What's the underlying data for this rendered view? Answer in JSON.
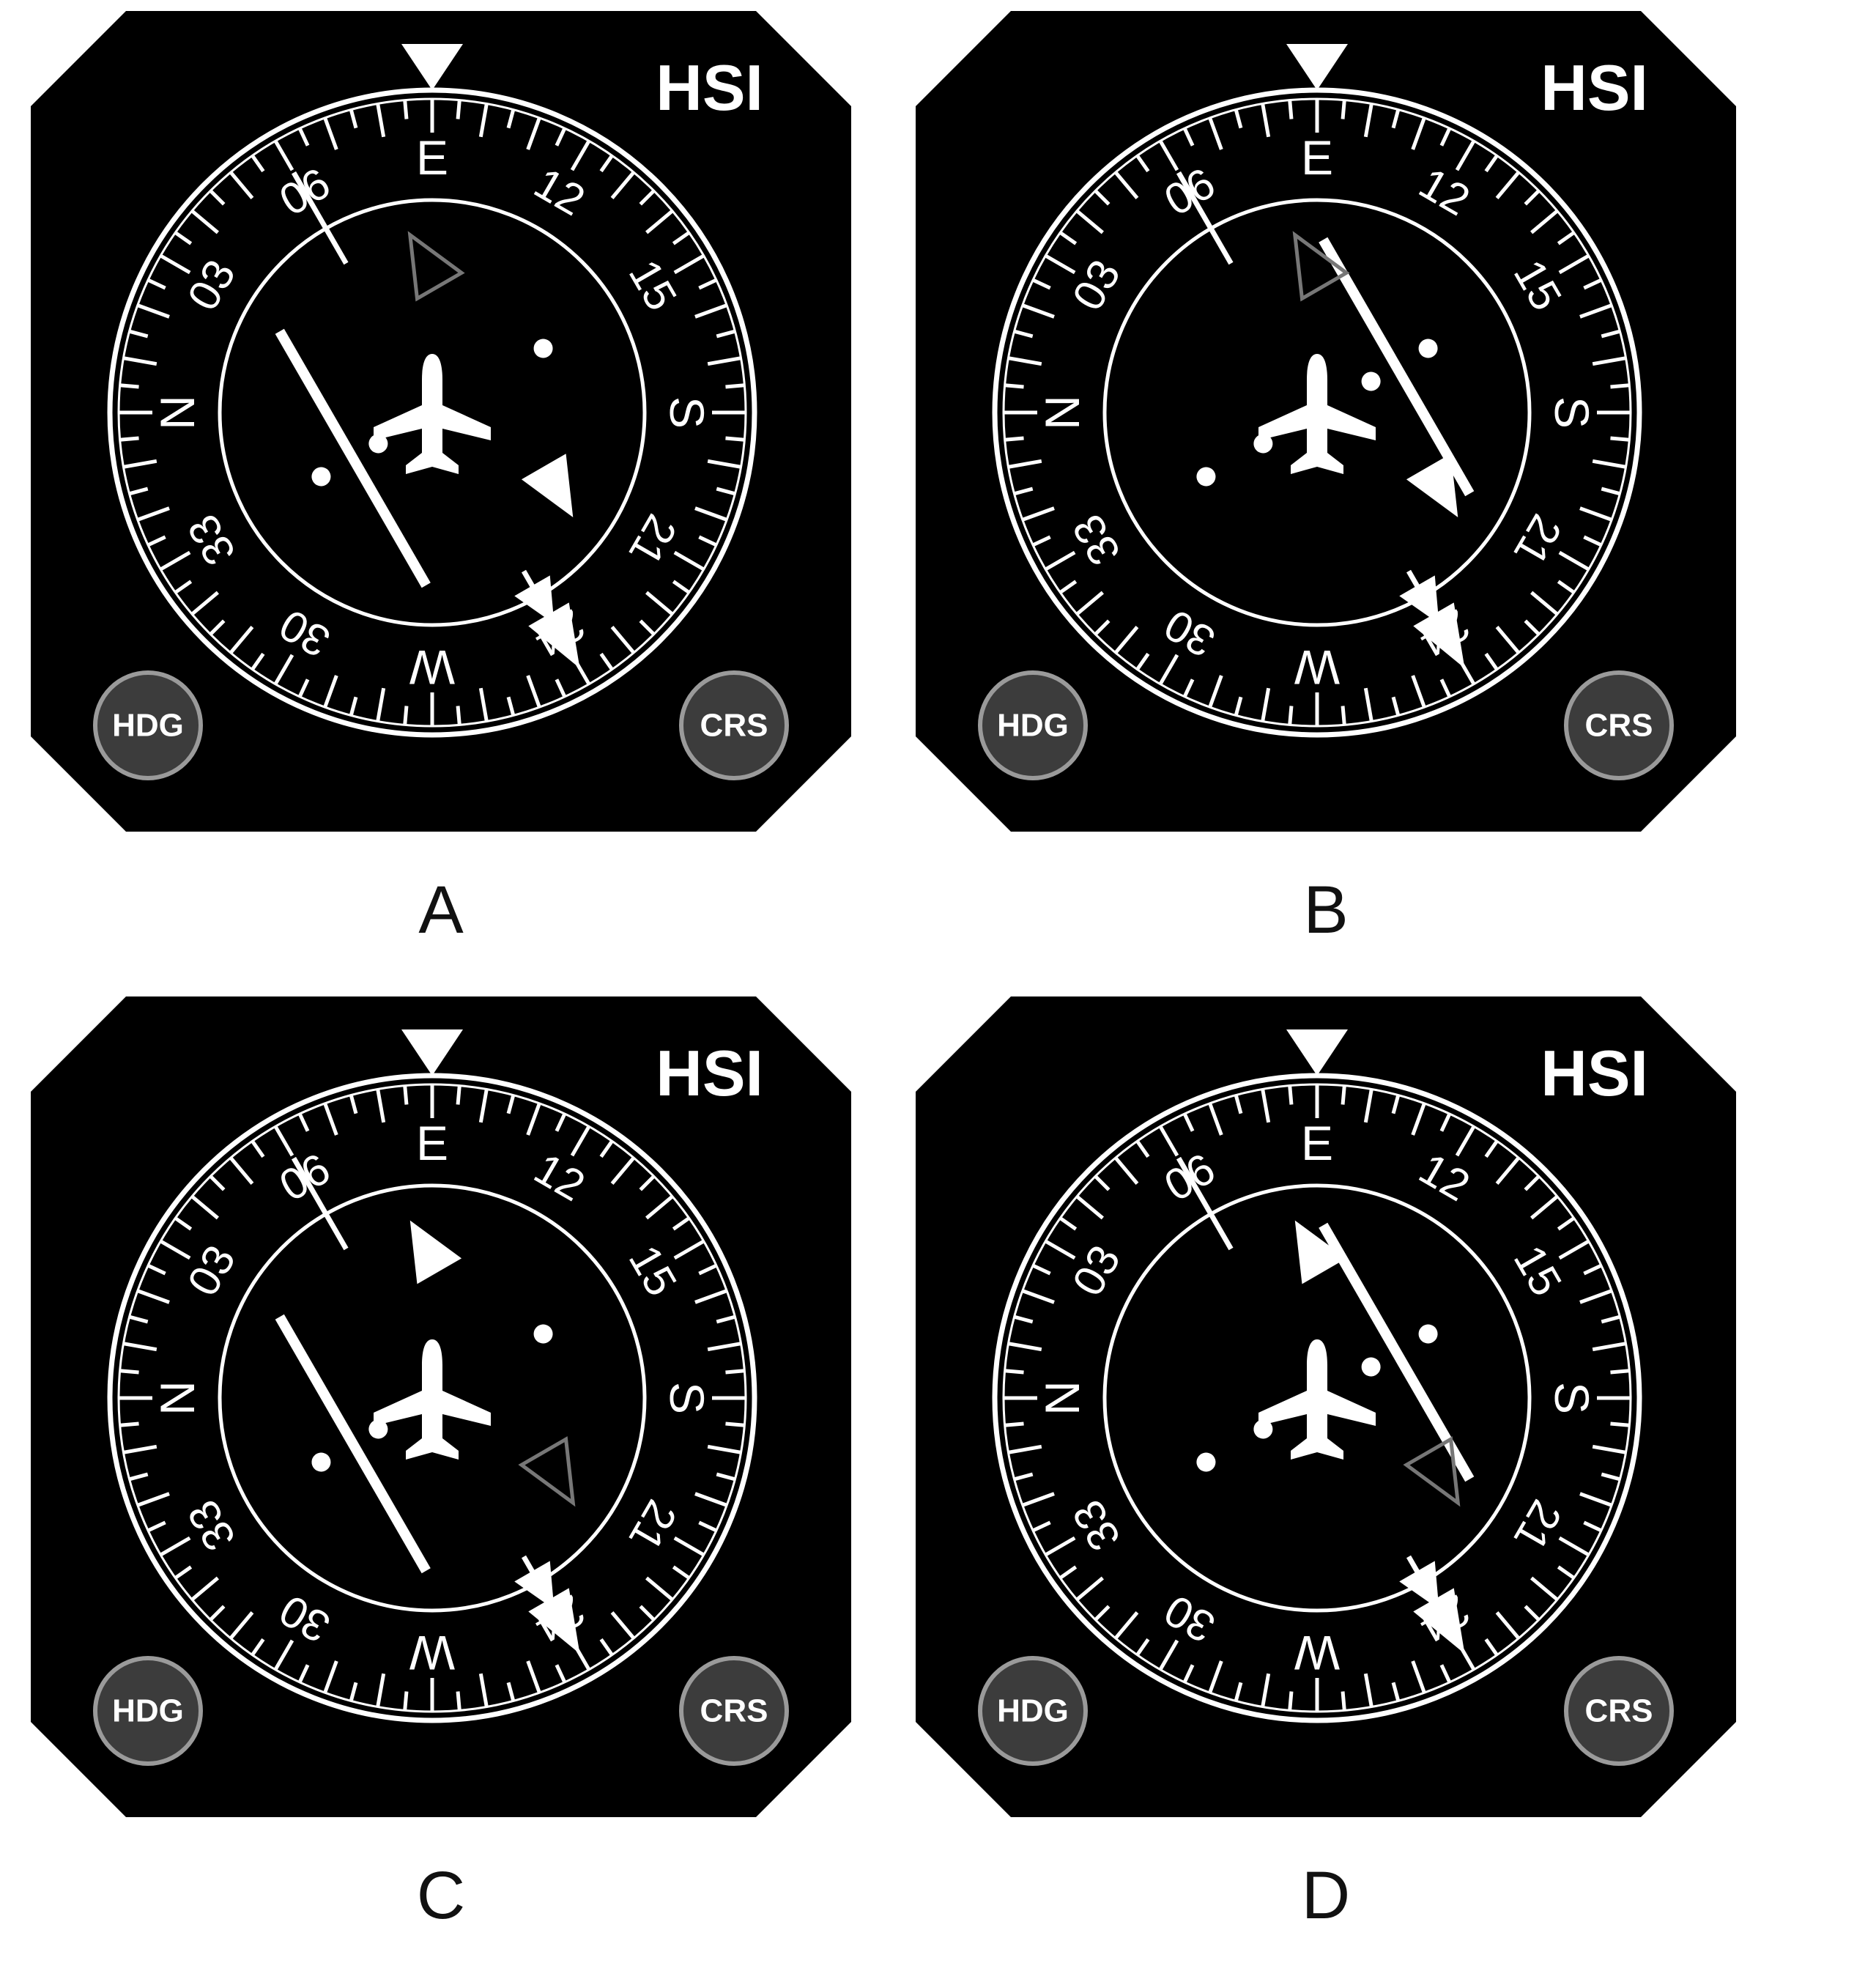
{
  "panels": [
    {
      "id": "a",
      "label": "A",
      "title": "HSI",
      "heading_knob": "HDG",
      "course_knob": "CRS",
      "compass_labels": [
        "E",
        "12",
        "15",
        "S",
        "21",
        "24",
        "W",
        "30",
        "33",
        "N",
        "03",
        "06"
      ],
      "cdi_deflection": "right",
      "to_from_indicator": "from",
      "to_indicator_style": "outline",
      "from_indicator_style": "filled"
    },
    {
      "id": "b",
      "label": "B",
      "title": "HSI",
      "heading_knob": "HDG",
      "course_knob": "CRS",
      "compass_labels": [
        "E",
        "12",
        "15",
        "S",
        "21",
        "24",
        "W",
        "30",
        "33",
        "N",
        "03",
        "06"
      ],
      "cdi_deflection": "left",
      "to_from_indicator": "from",
      "to_indicator_style": "outline",
      "from_indicator_style": "filled"
    },
    {
      "id": "c",
      "label": "C",
      "title": "HSI",
      "heading_knob": "HDG",
      "course_knob": "CRS",
      "compass_labels": [
        "E",
        "12",
        "15",
        "S",
        "21",
        "24",
        "W",
        "30",
        "33",
        "N",
        "03",
        "06"
      ],
      "cdi_deflection": "right",
      "to_from_indicator": "to",
      "to_indicator_style": "filled",
      "from_indicator_style": "outline"
    },
    {
      "id": "d",
      "label": "D",
      "title": "HSI",
      "heading_knob": "HDG",
      "course_knob": "CRS",
      "compass_labels": [
        "E",
        "12",
        "15",
        "S",
        "21",
        "24",
        "W",
        "30",
        "33",
        "N",
        "03",
        "06"
      ],
      "cdi_deflection": "left",
      "to_from_indicator": "to",
      "to_indicator_style": "filled",
      "from_indicator_style": "outline"
    }
  ],
  "colors": {
    "bezel": "#000000",
    "markings": "#ffffff",
    "knob_fill": "#3c3c3c",
    "knob_ring": "#9a9a9a",
    "outline_indicator": "#777777"
  }
}
